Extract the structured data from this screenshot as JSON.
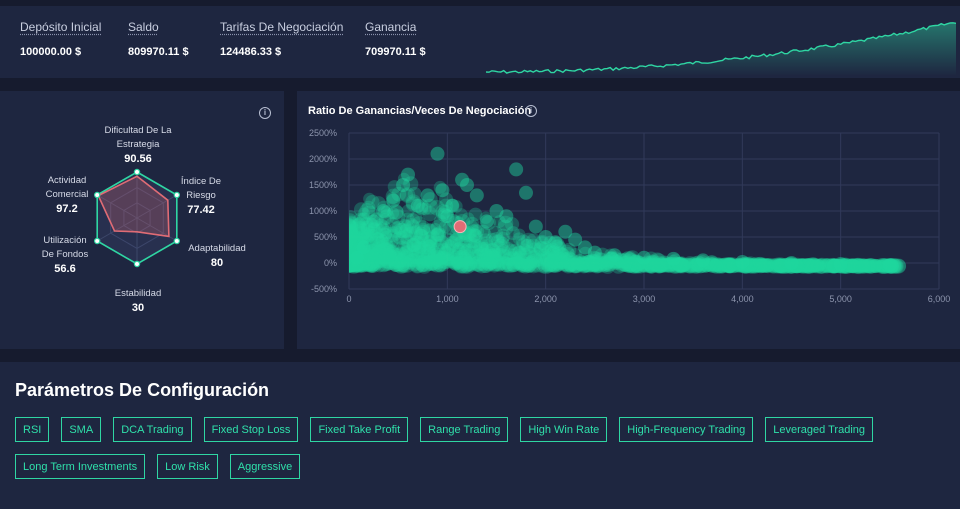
{
  "summary": [
    {
      "label": "Depósito Inicial",
      "value": "100000.00 $"
    },
    {
      "label": "Saldo",
      "value": "809970.11 $"
    },
    {
      "label": "Tarifas De Negociación",
      "value": "124486.33 $"
    },
    {
      "label": "Ganancia",
      "value": "709970.11 $"
    }
  ],
  "colors": {
    "accent": "#2fd6a3",
    "highlight": "#e06c75",
    "panel": "#1e2640",
    "background": "#161b2e"
  },
  "radar": {
    "axes": [
      {
        "label": "Dificultad De La Estrategia",
        "value": 90.56
      },
      {
        "label": "Índice De Riesgo",
        "value": 77.42
      },
      {
        "label": "Adaptabilidad",
        "value": 80
      },
      {
        "label": "Estabilidad",
        "value": 30
      },
      {
        "label": "Utilización De Fondos",
        "value": 56.6
      },
      {
        "label": "Actividad Comercial",
        "value": 97.2
      }
    ],
    "max": 100
  },
  "chart_data": {
    "type": "scatter",
    "title": "Ratio De Ganancias/Veces De Negociación",
    "xlim": [
      0,
      6000
    ],
    "ylim": [
      -500,
      2500
    ],
    "x_ticks": [
      "0",
      "1,000",
      "2,000",
      "3,000",
      "4,000",
      "5,000",
      "6,000"
    ],
    "y_ticks": [
      "2500%",
      "2000%",
      "1500%",
      "1000%",
      "500%",
      "0%",
      "-500%"
    ],
    "grid": true,
    "highlight_point": {
      "x": 1130,
      "y": 700
    },
    "series_points": [
      [
        80,
        100
      ],
      [
        150,
        300
      ],
      [
        250,
        800
      ],
      [
        350,
        1000
      ],
      [
        450,
        1200
      ],
      [
        550,
        1500
      ],
      [
        600,
        1700
      ],
      [
        700,
        1100
      ],
      [
        800,
        1300
      ],
      [
        900,
        2100
      ],
      [
        950,
        1400
      ],
      [
        1000,
        900
      ],
      [
        1050,
        1100
      ],
      [
        1150,
        1600
      ],
      [
        1200,
        1500
      ],
      [
        1300,
        1300
      ],
      [
        1400,
        800
      ],
      [
        1500,
        1000
      ],
      [
        1600,
        900
      ],
      [
        1700,
        1800
      ],
      [
        1800,
        1350
      ],
      [
        1900,
        700
      ],
      [
        2000,
        500
      ],
      [
        2100,
        400
      ],
      [
        2200,
        600
      ],
      [
        2300,
        450
      ],
      [
        2400,
        300
      ],
      [
        2500,
        200
      ],
      [
        2700,
        150
      ],
      [
        3000,
        100
      ],
      [
        3300,
        80
      ],
      [
        3600,
        50
      ],
      [
        4000,
        20
      ],
      [
        4500,
        0
      ],
      [
        5000,
        -20
      ],
      [
        5500,
        -40
      ]
    ]
  },
  "params": {
    "title": "Parámetros De Configuración",
    "tags": [
      "RSI",
      "SMA",
      "DCA Trading",
      "Fixed Stop Loss",
      "Fixed Take Profit",
      "Range Trading",
      "High Win Rate",
      "High-Frequency Trading",
      "Leveraged Trading",
      "Long Term Investments",
      "Low Risk",
      "Aggressive"
    ]
  }
}
